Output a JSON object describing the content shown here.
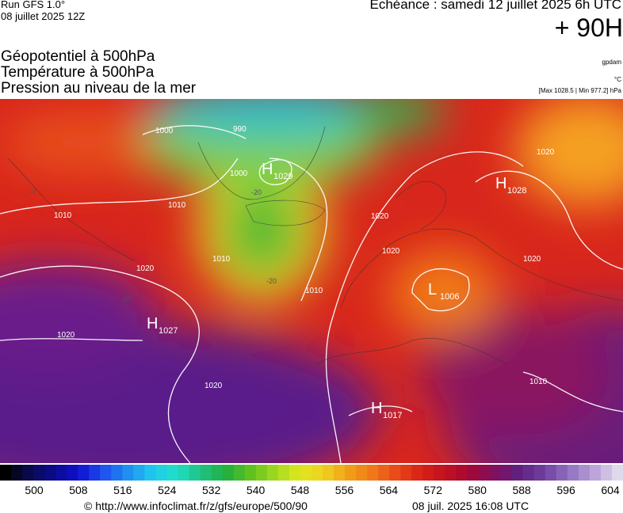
{
  "header": {
    "run": "Run GFS 1.0°",
    "run_date": "08 juillet 2025 12Z",
    "forecast": "Echéance : samedi 12 juillet 2025 6h UTC",
    "lead": "+ 90H"
  },
  "titles": [
    "Géopotentiel à 500hPa",
    "Température à 500hPa",
    "Pression au niveau de la mer"
  ],
  "units": {
    "geopotential": "gpdam",
    "temperature": "°C",
    "pressure": "[Max 1028.5 | Min 977.2] hPa"
  },
  "map": {
    "centers": [
      {
        "kind": "H",
        "value": "1029"
      },
      {
        "kind": "H",
        "value": "1028"
      },
      {
        "kind": "H",
        "value": "1027"
      },
      {
        "kind": "L",
        "value": "1006"
      },
      {
        "kind": "H",
        "value": "1017"
      }
    ],
    "isobar_labels": [
      "1000",
      "990",
      "1000",
      "1010",
      "1010",
      "1010",
      "1020",
      "1020",
      "1020",
      "1020",
      "1020",
      "1010",
      "1020",
      "1010",
      "1020"
    ],
    "temp_labels": [
      "-20",
      "-20",
      "-10",
      "-10"
    ]
  },
  "colorbar": {
    "ticks": [
      500,
      508,
      516,
      524,
      532,
      540,
      548,
      556,
      564,
      572,
      580,
      588,
      596,
      604
    ]
  },
  "footer": {
    "url": "© http://www.infoclimat.fr/z/gfs/europe/500/90",
    "timestamp": "08 juil. 2025 16:08 UTC"
  }
}
